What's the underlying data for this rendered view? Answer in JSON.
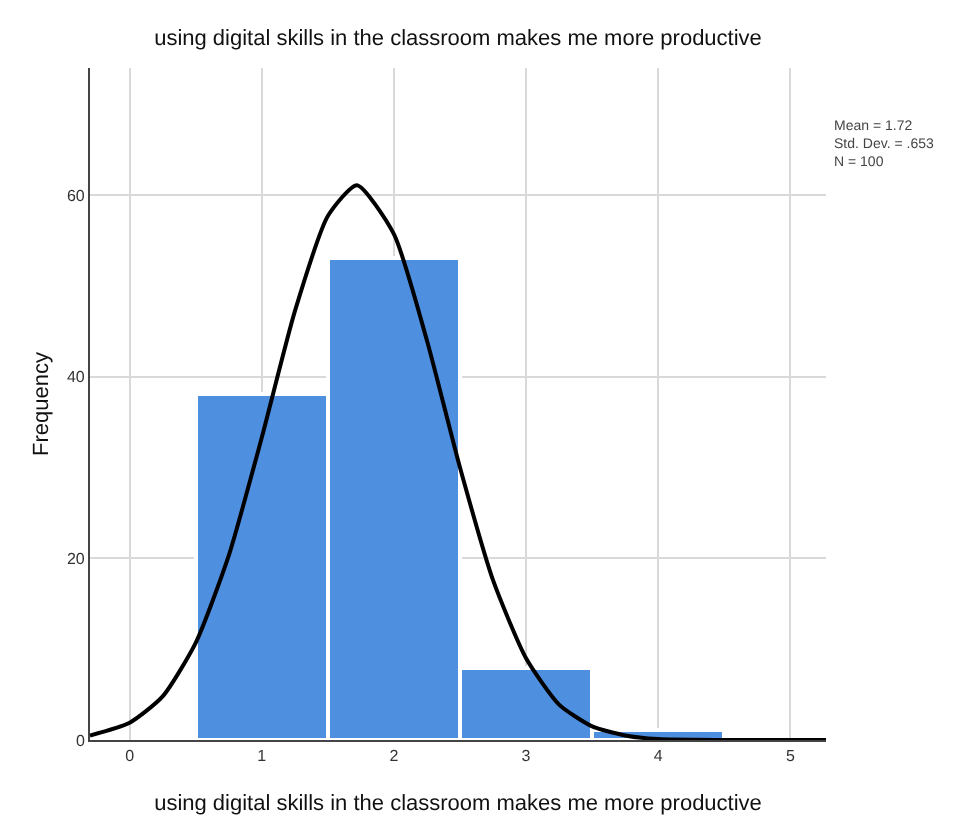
{
  "chart_data": {
    "type": "histogram",
    "title": "using digital skills in the classroom makes me more productive",
    "xlabel": "using digital skills in the classroom makes me more productive",
    "ylabel": "Frequency",
    "bins": [
      0.5,
      1.5,
      2.5,
      3.5,
      4.5
    ],
    "values": [
      38,
      53,
      8,
      1
    ],
    "color": "#4f8fe0",
    "series": [
      {
        "type": "line",
        "color": "#000000",
        "x": [
          -0.3,
          0,
          0.25,
          0.5,
          0.75,
          1,
          1.25,
          1.5,
          1.72,
          2,
          2.25,
          2.5,
          2.75,
          3,
          3.25,
          3.5,
          3.75,
          4,
          4.5,
          5.27
        ],
        "values": [
          0.5,
          1.9,
          4.8,
          10.7,
          20.3,
          33.3,
          47.2,
          57.7,
          61.1,
          55.7,
          44.0,
          30.0,
          17.6,
          9.0,
          3.9,
          1.5,
          0.5,
          0.1,
          0,
          0
        ]
      }
    ],
    "xlim": [
      -0.3,
      5.27
    ],
    "xticks": [
      0,
      1,
      2,
      3,
      4,
      5
    ],
    "ylim": [
      0,
      74
    ],
    "yticks": [
      0,
      20,
      40,
      60
    ],
    "grid": true,
    "annotations": [
      "Mean = 1.72",
      "Std. Dev. = .653",
      "N = 100"
    ]
  }
}
